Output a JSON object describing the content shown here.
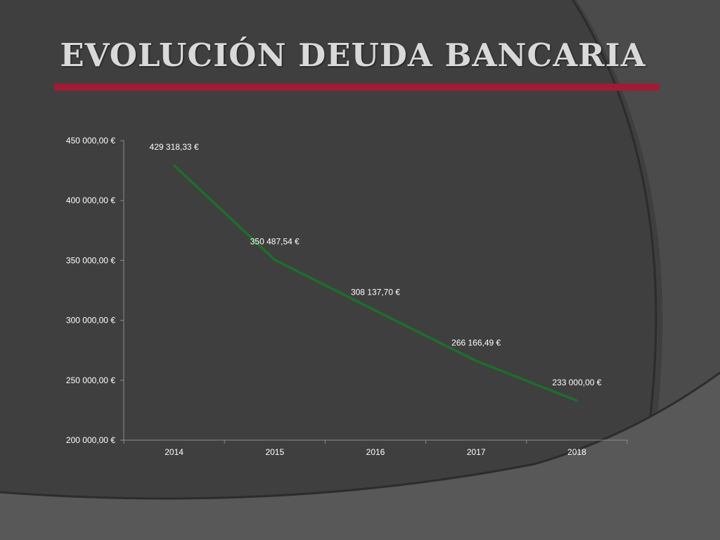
{
  "slide": {
    "title": "EVOLUCIÓN DEUDA BANCARIA",
    "accent_color": "#a11b35"
  },
  "chart_data": {
    "type": "line",
    "title": "",
    "xlabel": "",
    "ylabel": "",
    "categories": [
      "2014",
      "2015",
      "2016",
      "2017",
      "2018"
    ],
    "series": [
      {
        "values": [
          429318.33,
          350487.54,
          308137.7,
          266166.49,
          233000.0
        ],
        "labels": [
          "429 318,33 €",
          "350 487,54 €",
          "308 137,70 €",
          "266 166,49 €",
          "233 000,00 €"
        ],
        "color": "#1e6e2a"
      }
    ],
    "ylim": [
      200000,
      450000
    ],
    "yticks": [
      200000,
      250000,
      300000,
      350000,
      400000,
      450000
    ],
    "ytick_labels": [
      "200 000,00 €",
      "250 000,00 €",
      "300 000,00 €",
      "350 000,00 €",
      "400 000,00 €",
      "450 000,00 €"
    ],
    "grid": false,
    "legend": "none"
  }
}
